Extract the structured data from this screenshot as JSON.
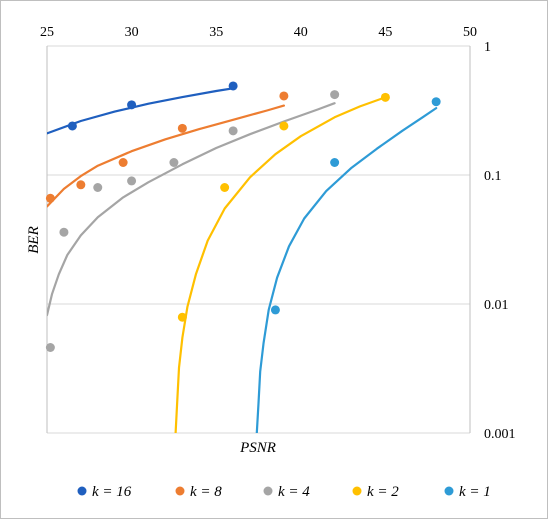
{
  "chart_data": {
    "type": "scatter",
    "title": "",
    "xlabel": "PSNR",
    "ylabel": "BER",
    "xlim": [
      25,
      50
    ],
    "ylim": [
      0.001,
      1
    ],
    "y_scale": "log",
    "x_ticks": [
      "25",
      "30",
      "35",
      "40",
      "45",
      "50"
    ],
    "y_ticks": [
      "1",
      "0.1",
      "0.01",
      "0.001"
    ],
    "x_axis_position": "top",
    "y_axis_position": "right",
    "grid": "horizontal",
    "legend": "bottom",
    "series": [
      {
        "name": "k = 16",
        "color": "#1f5fbf",
        "points": [
          [
            26.5,
            0.24
          ],
          [
            30,
            0.35
          ],
          [
            36,
            0.49
          ]
        ],
        "trend": [
          [
            25,
            0.21
          ],
          [
            27,
            0.262
          ],
          [
            29,
            0.31
          ],
          [
            31,
            0.357
          ],
          [
            33,
            0.402
          ],
          [
            35,
            0.448
          ],
          [
            36,
            0.47
          ]
        ]
      },
      {
        "name": "k = 8",
        "color": "#ed7d31",
        "points": [
          [
            25.2,
            0.066
          ],
          [
            27,
            0.084
          ],
          [
            29.5,
            0.125
          ],
          [
            33,
            0.23
          ],
          [
            39,
            0.41
          ]
        ],
        "trend": [
          [
            25,
            0.057
          ],
          [
            26,
            0.078
          ],
          [
            27,
            0.098
          ],
          [
            28,
            0.118
          ],
          [
            30,
            0.153
          ],
          [
            32,
            0.189
          ],
          [
            34,
            0.227
          ],
          [
            36,
            0.268
          ],
          [
            38,
            0.316
          ],
          [
            39,
            0.345
          ]
        ]
      },
      {
        "name": "k = 4",
        "color": "#a5a5a5",
        "points": [
          [
            25.2,
            0.0046
          ],
          [
            26,
            0.036
          ],
          [
            28,
            0.08
          ],
          [
            30,
            0.09
          ],
          [
            32.5,
            0.125
          ],
          [
            36,
            0.22
          ],
          [
            42,
            0.42
          ]
        ],
        "trend": [
          [
            25,
            0.0082
          ],
          [
            25.3,
            0.012
          ],
          [
            25.7,
            0.017
          ],
          [
            26.2,
            0.024
          ],
          [
            27,
            0.034
          ],
          [
            28,
            0.047
          ],
          [
            29.5,
            0.067
          ],
          [
            31,
            0.088
          ],
          [
            33,
            0.121
          ],
          [
            35,
            0.162
          ],
          [
            37,
            0.207
          ],
          [
            39,
            0.26
          ],
          [
            41,
            0.322
          ],
          [
            42,
            0.36
          ]
        ]
      },
      {
        "name": "k = 2",
        "color": "#ffc000",
        "points": [
          [
            33,
            0.0079
          ],
          [
            35.5,
            0.08
          ],
          [
            39,
            0.24
          ],
          [
            45,
            0.4
          ]
        ],
        "trend": [
          [
            32.6,
            0.001
          ],
          [
            32.7,
            0.0018
          ],
          [
            32.8,
            0.0032
          ],
          [
            33,
            0.0055
          ],
          [
            33.3,
            0.0095
          ],
          [
            33.8,
            0.017
          ],
          [
            34.5,
            0.031
          ],
          [
            35.5,
            0.055
          ],
          [
            37,
            0.096
          ],
          [
            38.5,
            0.145
          ],
          [
            40,
            0.2
          ],
          [
            42,
            0.28
          ],
          [
            43.5,
            0.34
          ],
          [
            45,
            0.4
          ]
        ]
      },
      {
        "name": "k = 1",
        "color": "#2e9bd6",
        "points": [
          [
            38.5,
            0.009
          ],
          [
            42,
            0.125
          ],
          [
            48,
            0.37
          ]
        ],
        "trend": [
          [
            37.4,
            0.001
          ],
          [
            37.5,
            0.0017
          ],
          [
            37.6,
            0.003
          ],
          [
            37.8,
            0.005
          ],
          [
            38.1,
            0.009
          ],
          [
            38.6,
            0.016
          ],
          [
            39.3,
            0.028
          ],
          [
            40.2,
            0.046
          ],
          [
            41.5,
            0.075
          ],
          [
            43,
            0.114
          ],
          [
            44.5,
            0.16
          ],
          [
            46,
            0.22
          ],
          [
            47.2,
            0.28
          ],
          [
            48,
            0.33
          ]
        ]
      }
    ]
  }
}
